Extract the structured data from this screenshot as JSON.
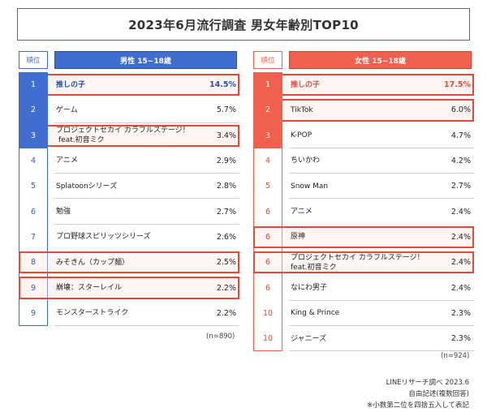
{
  "title": "2023年6月流行調査 男女年齢別TOP10",
  "rank_header": "順位",
  "male": {
    "group_label": "男性 15~18歳",
    "n_label": "(n=890)",
    "rows": [
      {
        "rank": "1",
        "item": "推しの子",
        "pct": "14.5%"
      },
      {
        "rank": "2",
        "item": "ゲーム",
        "pct": "5.7%"
      },
      {
        "rank": "3",
        "item": "プロジェクトセカイ カラフルステージ！",
        "item2": "feat.初音ミク",
        "pct": "3.4%"
      },
      {
        "rank": "4",
        "item": "アニメ",
        "pct": "2.9%"
      },
      {
        "rank": "5",
        "item": "Splatoonシリーズ",
        "pct": "2.8%"
      },
      {
        "rank": "6",
        "item": "勉強",
        "pct": "2.7%"
      },
      {
        "rank": "7",
        "item": "プロ野球スピリッツシリーズ",
        "pct": "2.6%"
      },
      {
        "rank": "8",
        "item": "みそきん（カップ麺）",
        "pct": "2.5%"
      },
      {
        "rank": "9",
        "item": "崩壊：スターレイル",
        "pct": "2.2%"
      },
      {
        "rank": "9",
        "item": "モンスターストライク",
        "pct": "2.2%"
      }
    ]
  },
  "female": {
    "group_label": "女性 15~18歳",
    "n_label": "(n=924)",
    "rows": [
      {
        "rank": "1",
        "item": "推しの子",
        "pct": "17.5%"
      },
      {
        "rank": "2",
        "item": "TikTok",
        "pct": "6.0%"
      },
      {
        "rank": "3",
        "item": "K-POP",
        "pct": "4.7%"
      },
      {
        "rank": "4",
        "item": "ちいかわ",
        "pct": "4.2%"
      },
      {
        "rank": "5",
        "item": "Snow Man",
        "pct": "2.7%"
      },
      {
        "rank": "6",
        "item": "アニメ",
        "pct": "2.4%"
      },
      {
        "rank": "6",
        "item": "原神",
        "pct": "2.4%"
      },
      {
        "rank": "6",
        "item": "プロジェクトセカイ カラフルステージ！",
        "item2": "feat.初音ミク",
        "pct": "2.4%"
      },
      {
        "rank": "6",
        "item": "なにわ男子",
        "pct": "2.4%"
      },
      {
        "rank": "10",
        "item": "King & Prince",
        "pct": "2.3%"
      },
      {
        "rank": "10",
        "item": "ジャニーズ",
        "pct": "2.3%"
      }
    ]
  },
  "footer": {
    "source": "LINEリサーチ調べ 2023.6",
    "method": "自由記述(複数回答)",
    "note": "※小数第二位を四捨五入して表記"
  },
  "colors": {
    "male_accent": "#3f6dd0",
    "female_accent": "#f0604f",
    "highlight_frame": "#e5493a"
  }
}
